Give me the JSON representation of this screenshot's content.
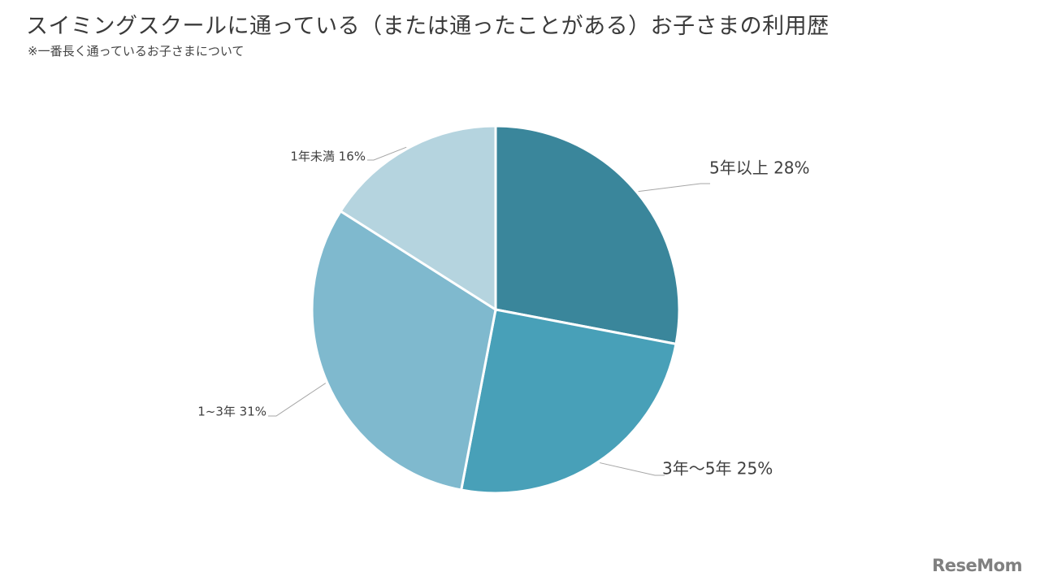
{
  "title": "スイミングスクールに通っている（または通ったことがある）お子さまの利用歴",
  "subtitle": "※一番長く通っているお子さまについて",
  "logo_text": "ReseMom",
  "chart_data": {
    "type": "pie",
    "categories": [
      "5年以上",
      "3年〜5年",
      "1~3年",
      "1年未満"
    ],
    "values": [
      28,
      25,
      31,
      16
    ],
    "unit": "%",
    "labels": [
      "5年以上 28%",
      "3年〜5年 25%",
      "1~3年 31%",
      "1年未満 16%"
    ],
    "colors": [
      "#3a869b",
      "#48a0b8",
      "#7fb9ce",
      "#b5d4df"
    ],
    "start_angle": "12 o'clock",
    "direction": "clockwise",
    "legend": "none"
  }
}
